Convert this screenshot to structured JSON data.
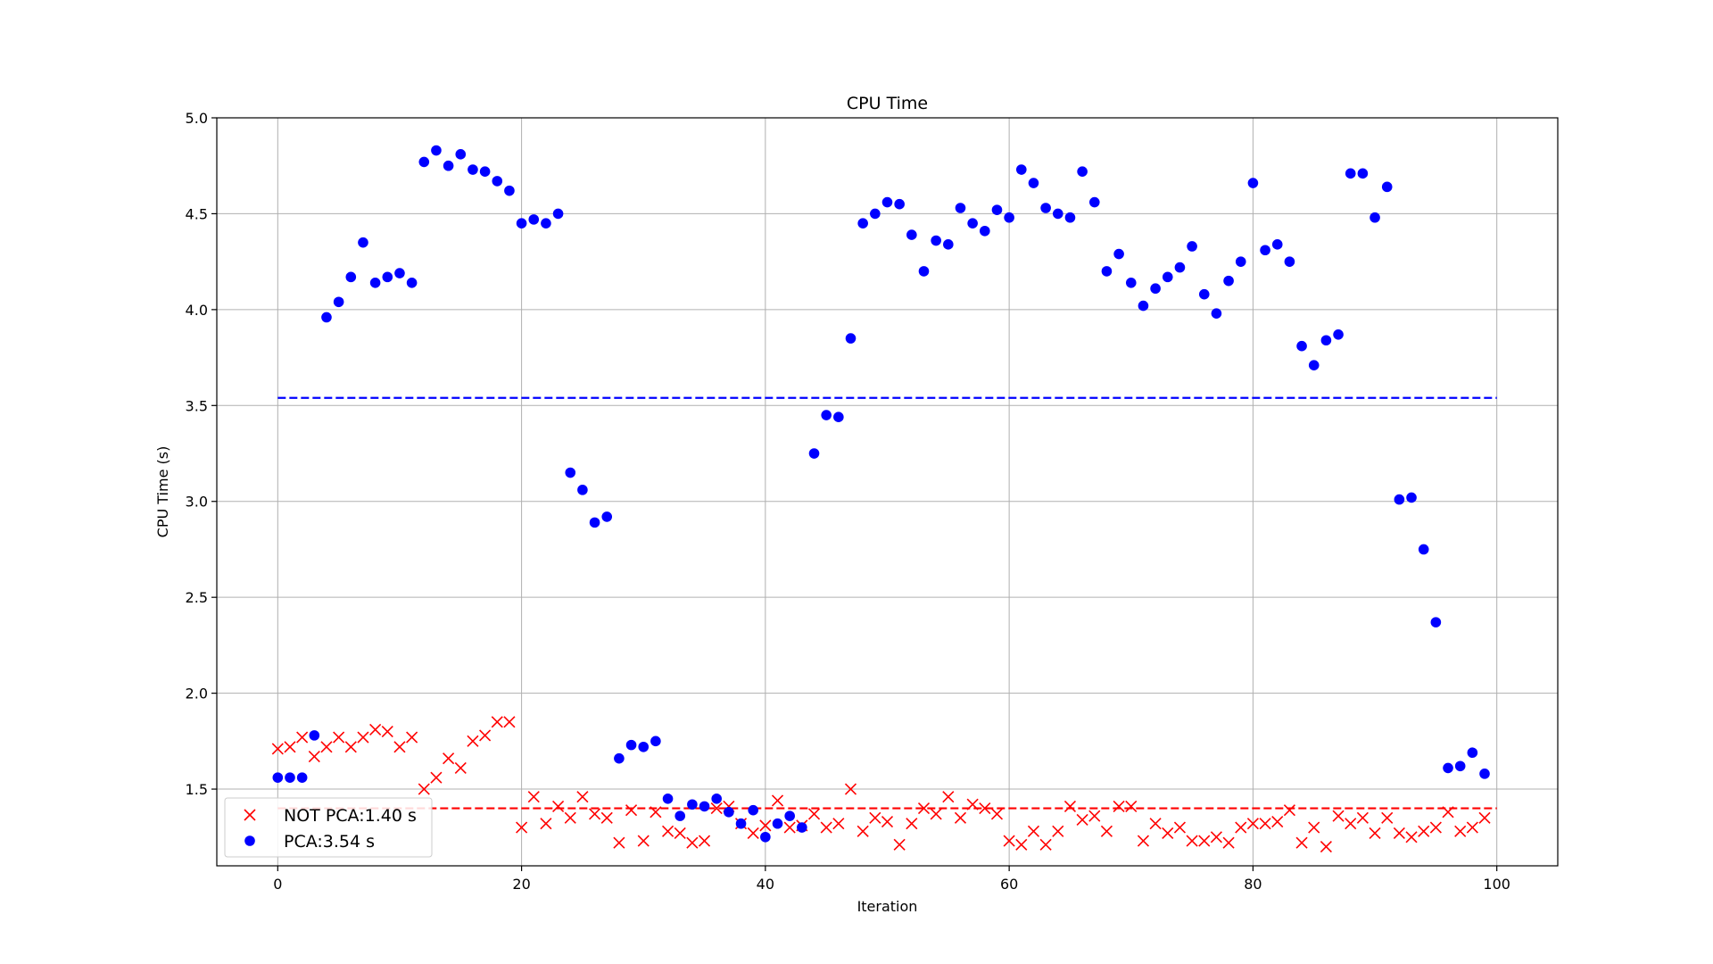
{
  "chart_data": {
    "type": "scatter",
    "title": "CPU Time",
    "xlabel": "Iteration",
    "ylabel": "CPU Time (s)",
    "xlim": [
      -5,
      105
    ],
    "ylim": [
      1.1,
      5.0
    ],
    "xticks": [
      0,
      20,
      40,
      60,
      80,
      100
    ],
    "xtick_labels": [
      "0",
      "20",
      "40",
      "60",
      "80",
      "100"
    ],
    "yticks": [
      1.5,
      2.0,
      2.5,
      3.0,
      3.5,
      4.0,
      4.5,
      5.0
    ],
    "ytick_labels": [
      "1.5",
      "2.0",
      "2.5",
      "3.0",
      "3.5",
      "4.0",
      "4.5",
      "5.0"
    ],
    "grid": true,
    "legend_position": "lower-left",
    "series": [
      {
        "name": "NOT PCA:1.40 s",
        "marker": "x",
        "color": "#ff0000",
        "mean": 1.4,
        "x": [
          0,
          1,
          2,
          3,
          4,
          5,
          6,
          7,
          8,
          9,
          10,
          11,
          12,
          13,
          14,
          15,
          16,
          17,
          18,
          19,
          20,
          21,
          22,
          23,
          24,
          25,
          26,
          27,
          28,
          29,
          30,
          31,
          32,
          33,
          34,
          35,
          36,
          37,
          38,
          39,
          40,
          41,
          42,
          43,
          44,
          45,
          46,
          47,
          48,
          49,
          50,
          51,
          52,
          53,
          54,
          55,
          56,
          57,
          58,
          59,
          60,
          61,
          62,
          63,
          64,
          65,
          66,
          67,
          68,
          69,
          70,
          71,
          72,
          73,
          74,
          75,
          76,
          77,
          78,
          79,
          80,
          81,
          82,
          83,
          84,
          85,
          86,
          87,
          88,
          89,
          90,
          91,
          92,
          93,
          94,
          95,
          96,
          97,
          98,
          99
        ],
        "y": [
          1.71,
          1.72,
          1.77,
          1.67,
          1.72,
          1.77,
          1.72,
          1.77,
          1.81,
          1.8,
          1.72,
          1.77,
          1.5,
          1.56,
          1.66,
          1.61,
          1.75,
          1.78,
          1.85,
          1.85,
          1.3,
          1.46,
          1.32,
          1.41,
          1.35,
          1.46,
          1.37,
          1.35,
          1.22,
          1.39,
          1.23,
          1.38,
          1.28,
          1.27,
          1.22,
          1.23,
          1.4,
          1.41,
          1.32,
          1.27,
          1.31,
          1.44,
          1.3,
          1.31,
          1.37,
          1.3,
          1.32,
          1.5,
          1.28,
          1.35,
          1.33,
          1.21,
          1.32,
          1.4,
          1.37,
          1.46,
          1.35,
          1.42,
          1.4,
          1.37,
          1.23,
          1.21,
          1.28,
          1.21,
          1.28,
          1.41,
          1.34,
          1.36,
          1.28,
          1.41,
          1.41,
          1.23,
          1.32,
          1.27,
          1.3,
          1.23,
          1.23,
          1.25,
          1.22,
          1.3,
          1.32,
          1.32,
          1.33,
          1.39,
          1.22,
          1.3,
          1.2,
          1.36,
          1.32,
          1.35,
          1.27,
          1.35,
          1.27,
          1.25,
          1.28,
          1.3,
          1.38,
          1.28,
          1.3,
          1.35
        ]
      },
      {
        "name": "PCA:3.54 s",
        "marker": "o",
        "color": "#0000ff",
        "mean": 3.54,
        "x": [
          0,
          1,
          2,
          3,
          4,
          5,
          6,
          7,
          8,
          9,
          10,
          11,
          12,
          13,
          14,
          15,
          16,
          17,
          18,
          19,
          20,
          21,
          22,
          23,
          24,
          25,
          26,
          27,
          28,
          29,
          30,
          31,
          32,
          33,
          34,
          35,
          36,
          37,
          38,
          39,
          40,
          41,
          42,
          43,
          44,
          45,
          46,
          47,
          48,
          49,
          50,
          51,
          52,
          53,
          54,
          55,
          56,
          57,
          58,
          59,
          60,
          61,
          62,
          63,
          64,
          65,
          66,
          67,
          68,
          69,
          70,
          71,
          72,
          73,
          74,
          75,
          76,
          77,
          78,
          79,
          80,
          81,
          82,
          83,
          84,
          85,
          86,
          87,
          88,
          89,
          90,
          91,
          92,
          93,
          94,
          95,
          96,
          97,
          98,
          99
        ],
        "y": [
          1.56,
          1.56,
          1.56,
          1.78,
          3.96,
          4.04,
          4.17,
          4.35,
          4.14,
          4.17,
          4.19,
          4.14,
          4.77,
          4.83,
          4.75,
          4.81,
          4.73,
          4.72,
          4.67,
          4.62,
          4.45,
          4.47,
          4.45,
          4.5,
          3.15,
          3.06,
          2.89,
          2.92,
          1.66,
          1.73,
          1.72,
          1.75,
          1.45,
          1.36,
          1.42,
          1.41,
          1.45,
          1.38,
          1.32,
          1.39,
          1.25,
          1.32,
          1.36,
          1.3,
          3.25,
          3.45,
          3.44,
          3.85,
          4.45,
          4.5,
          4.56,
          4.55,
          4.39,
          4.2,
          4.36,
          4.34,
          4.53,
          4.45,
          4.41,
          4.52,
          4.48,
          4.73,
          4.66,
          4.53,
          4.5,
          4.48,
          4.72,
          4.56,
          4.2,
          4.29,
          4.14,
          4.02,
          4.11,
          4.17,
          4.22,
          4.33,
          4.08,
          3.98,
          4.15,
          4.25,
          4.66,
          4.31,
          4.34,
          4.25,
          3.81,
          3.71,
          3.84,
          3.87,
          4.71,
          4.71,
          4.48,
          4.64,
          3.01,
          3.02,
          2.75,
          2.37,
          1.61,
          1.62,
          1.69,
          1.58
        ]
      }
    ]
  }
}
